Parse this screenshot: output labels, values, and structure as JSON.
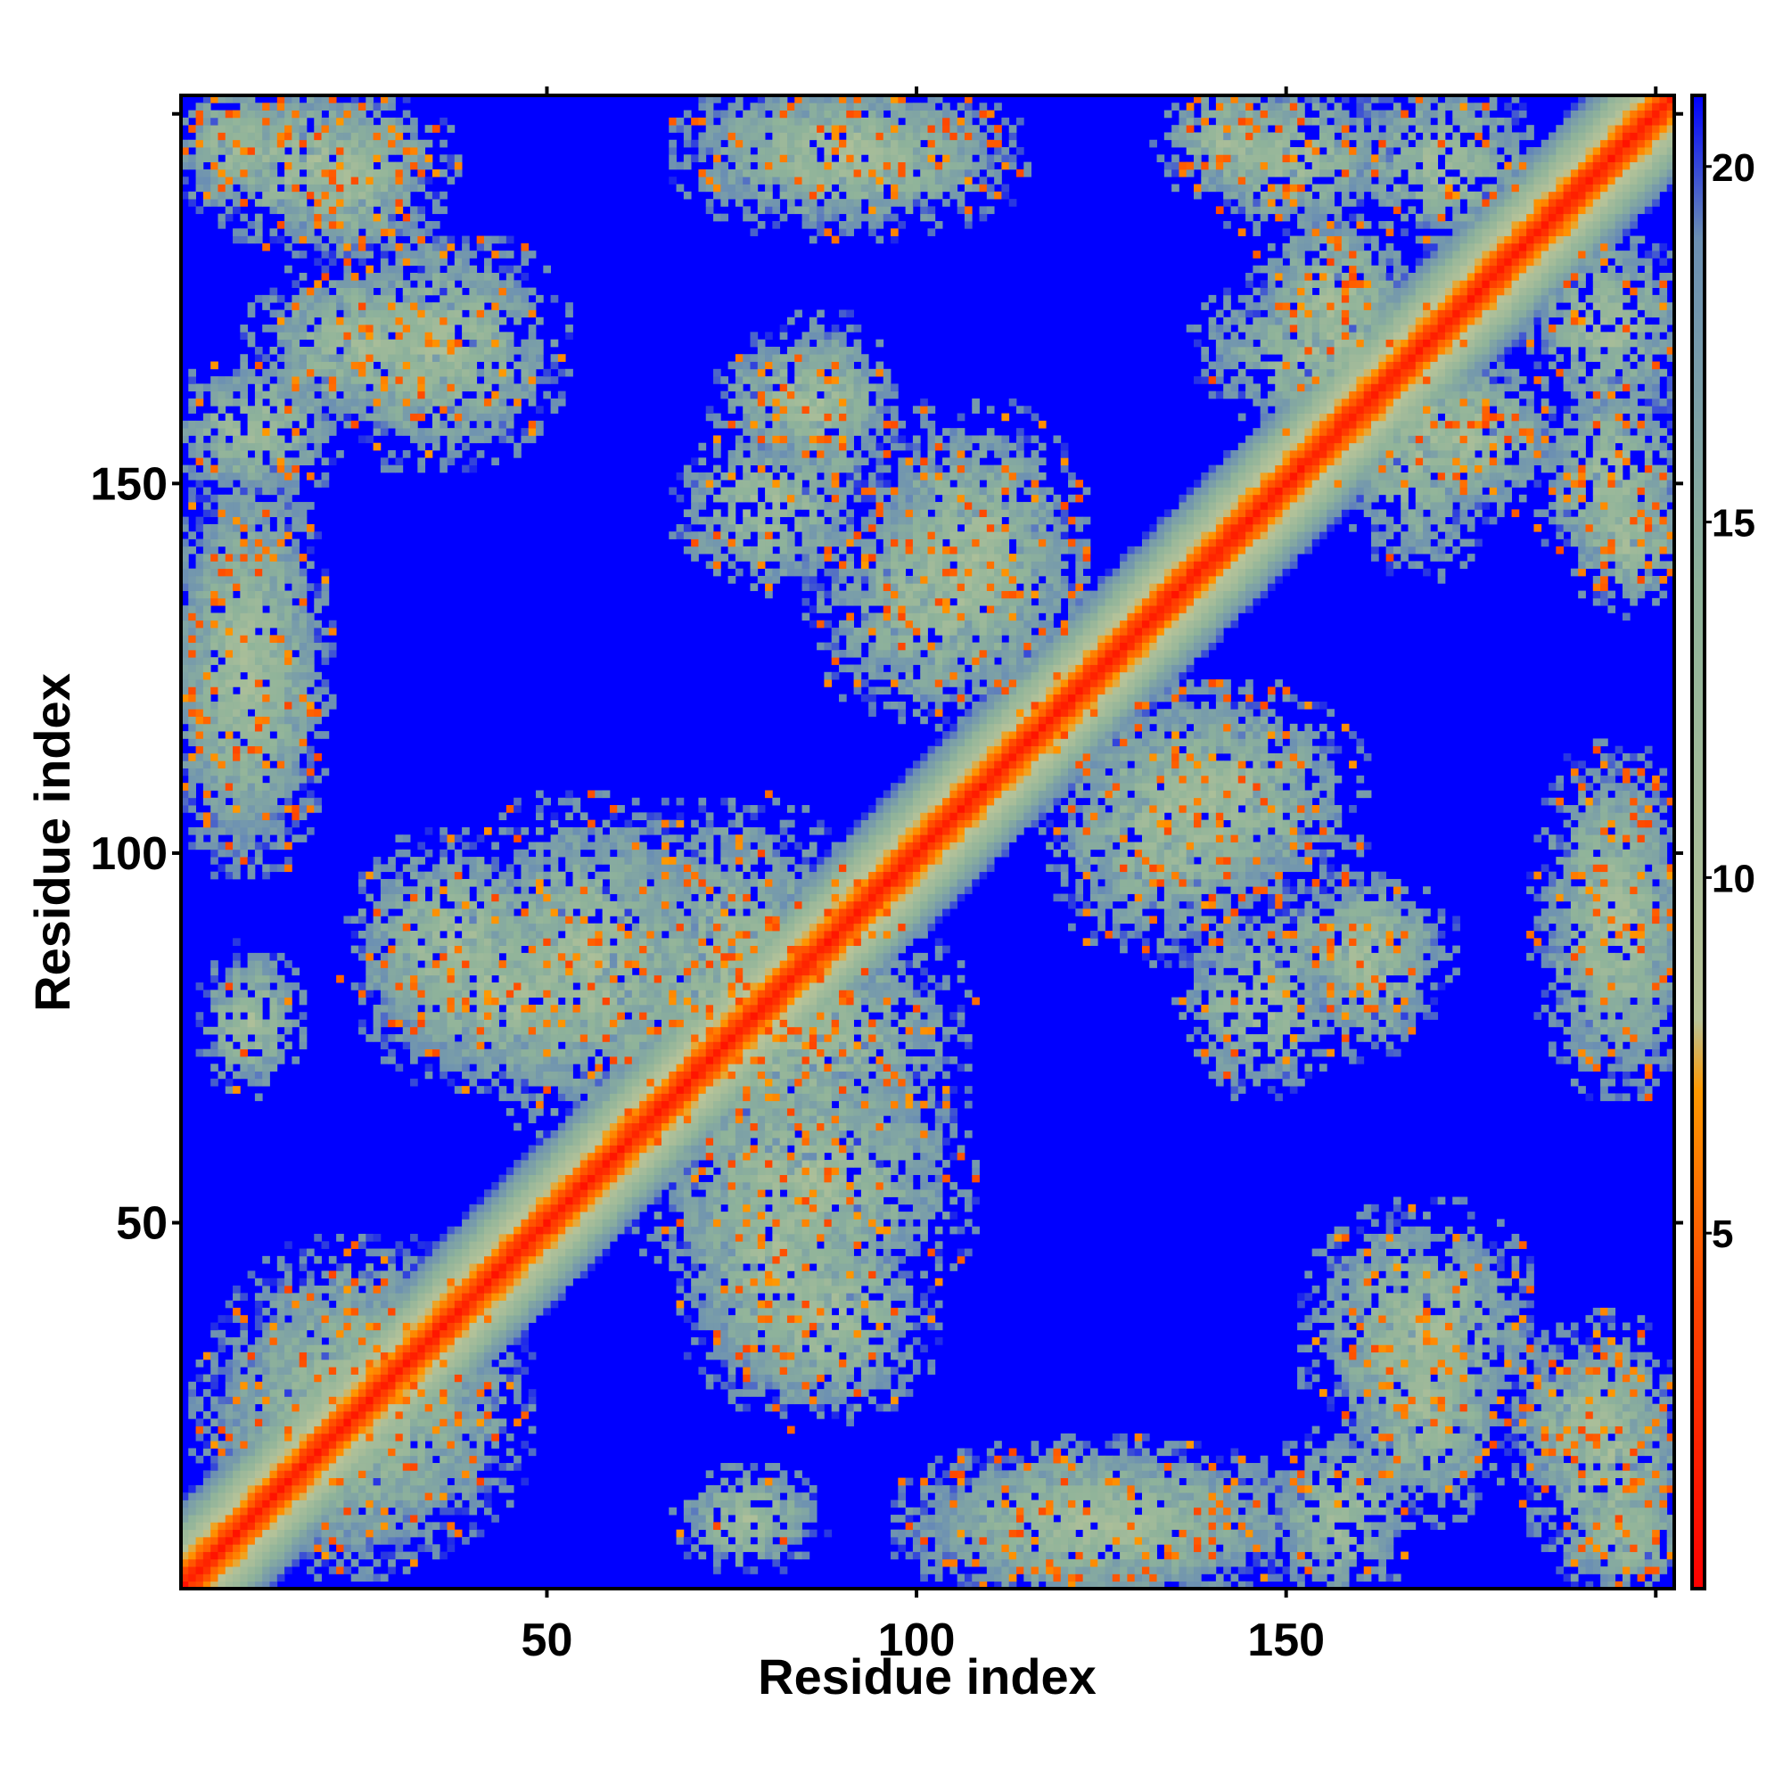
{
  "chart_data": {
    "type": "heatmap",
    "title": "",
    "xlabel": "Residue index",
    "ylabel": "Residue index",
    "n_residues": 202,
    "xlim": [
      1,
      202
    ],
    "ylim": [
      1,
      202
    ],
    "x_ticks": [
      50,
      100,
      150
    ],
    "y_ticks": [
      50,
      100,
      150
    ],
    "colorbar": {
      "ticks": [
        5,
        10,
        15,
        20
      ],
      "range": [
        0,
        21
      ],
      "stops": [
        {
          "value": 0,
          "color": "#ff0000"
        },
        {
          "value": 4,
          "color": "#ff4400"
        },
        {
          "value": 7,
          "color": "#ff9900"
        },
        {
          "value": 8,
          "color": "#b9c499"
        },
        {
          "value": 14,
          "color": "#8fb39a"
        },
        {
          "value": 19,
          "color": "#6b8fb3"
        },
        {
          "value": 21,
          "color": "#0000ff"
        }
      ]
    },
    "background_color": "#0000ff",
    "contact_blocks": [
      {
        "i": [
          2,
          14
        ],
        "j": [
          190,
          202
        ],
        "strength": 0.55
      },
      {
        "i": [
          14,
          32
        ],
        "j": [
          182,
          200
        ],
        "strength": 0.55
      },
      {
        "i": [
          12,
          38
        ],
        "j": [
          160,
          178
        ],
        "strength": 0.5
      },
      {
        "i": [
          1,
          18
        ],
        "j": [
          100,
          150
        ],
        "strength": 0.45
      },
      {
        "i": [
          70,
          110
        ],
        "j": [
          190,
          202
        ],
        "strength": 0.45
      },
      {
        "i": [
          135,
          150
        ],
        "j": [
          190,
          202
        ],
        "strength": 0.5
      },
      {
        "i": [
          160,
          182
        ],
        "j": [
          185,
          202
        ],
        "strength": 0.5
      },
      {
        "i": [
          148,
          165
        ],
        "j": [
          165,
          185
        ],
        "strength": 0.5
      },
      {
        "i": [
          160,
          176
        ],
        "j": [
          140,
          170
        ],
        "strength": 0.45
      },
      {
        "i": [
          186,
          202
        ],
        "j": [
          140,
          162
        ],
        "strength": 0.45
      },
      {
        "i": [
          186,
          202
        ],
        "j": [
          70,
          112
        ],
        "strength": 0.45
      },
      {
        "i": [
          75,
          92
        ],
        "j": [
          155,
          168
        ],
        "strength": 0.5
      },
      {
        "i": [
          70,
          90
        ],
        "j": [
          138,
          155
        ],
        "strength": 0.4
      },
      {
        "i": [
          95,
          120
        ],
        "j": [
          125,
          158
        ],
        "strength": 0.5
      },
      {
        "i": [
          120,
          150
        ],
        "j": [
          88,
          120
        ],
        "strength": 0.5
      },
      {
        "i": [
          150,
          170
        ],
        "j": [
          80,
          95
        ],
        "strength": 0.5
      },
      {
        "i": [
          60,
          90
        ],
        "j": [
          60,
          105
        ],
        "strength": 0.5
      },
      {
        "i": [
          28,
          62
        ],
        "j": [
          70,
          92
        ],
        "strength": 0.45
      },
      {
        "i": [
          65,
          105
        ],
        "j": [
          40,
          72
        ],
        "strength": 0.45
      },
      {
        "i": [
          75,
          100
        ],
        "j": [
          25,
          50
        ],
        "strength": 0.4
      },
      {
        "i": [
          5,
          45
        ],
        "j": [
          8,
          40
        ],
        "strength": 0.45
      },
      {
        "i": [
          100,
          150
        ],
        "j": [
          1,
          18
        ],
        "strength": 0.45
      },
      {
        "i": [
          155,
          182
        ],
        "j": [
          20,
          50
        ],
        "strength": 0.5
      },
      {
        "i": [
          185,
          202
        ],
        "j": [
          1,
          35
        ],
        "strength": 0.55
      },
      {
        "i": [
          150,
          165
        ],
        "j": [
          1,
          20
        ],
        "strength": 0.45
      },
      {
        "i": [
          70,
          85
        ],
        "j": [
          5,
          15
        ],
        "strength": 0.35
      }
    ]
  }
}
